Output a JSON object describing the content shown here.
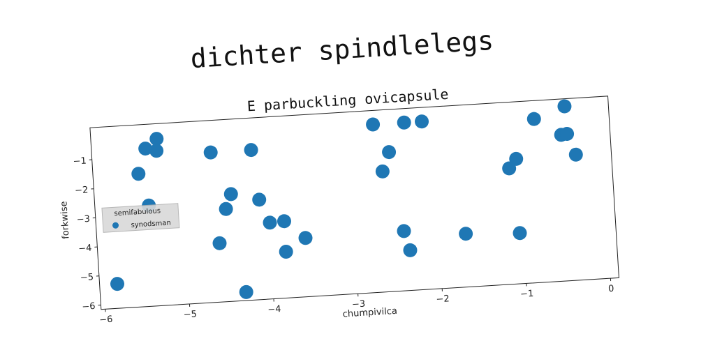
{
  "suptitle": "dichter spindlelegs",
  "chart_data": {
    "type": "scatter",
    "title": "E parbuckling ovicapsule",
    "xlabel": "chumpivilca",
    "ylabel": "forkwise",
    "xlim": [
      -6.05,
      0.1
    ],
    "ylim": [
      -6.15,
      0.1
    ],
    "xticks": [
      -6,
      -5,
      -4,
      -3,
      -2,
      -1,
      0
    ],
    "yticks": [
      -6,
      -5,
      -4,
      -3,
      -2,
      -1
    ],
    "xtick_labels": [
      "−6",
      "−5",
      "−4",
      "−3",
      "−2",
      "−1",
      "0"
    ],
    "ytick_labels": [
      "−6",
      "−5",
      "−4",
      "−3",
      "−2",
      "−1"
    ],
    "grid": false,
    "legend": {
      "title": "semifabulous",
      "position": "center-left"
    },
    "series": [
      {
        "name": "synodsman",
        "color": "#1f77b4",
        "points": [
          [
            -5.27,
            -0.42
          ],
          [
            -5.41,
            -0.73
          ],
          [
            -5.28,
            -0.83
          ],
          [
            -5.51,
            -1.58
          ],
          [
            -5.41,
            -2.69
          ],
          [
            -5.84,
            -5.31
          ],
          [
            -4.64,
            -1.0
          ],
          [
            -4.16,
            -1.0
          ],
          [
            -4.43,
            -2.47
          ],
          [
            -4.5,
            -2.97
          ],
          [
            -4.1,
            -2.72
          ],
          [
            -3.99,
            -3.53
          ],
          [
            -3.82,
            -3.51
          ],
          [
            -4.6,
            -4.13
          ],
          [
            -3.82,
            -4.56
          ],
          [
            -3.58,
            -4.13
          ],
          [
            -4.32,
            -5.86
          ],
          [
            -2.7,
            -0.38
          ],
          [
            -2.33,
            -0.38
          ],
          [
            -2.12,
            -0.38
          ],
          [
            -2.53,
            -1.36
          ],
          [
            -2.62,
            -2.01
          ],
          [
            -2.41,
            -4.1
          ],
          [
            -2.35,
            -4.77
          ],
          [
            -1.68,
            -4.32
          ],
          [
            -1.04,
            -4.41
          ],
          [
            -0.79,
            -0.53
          ],
          [
            -0.42,
            -0.16
          ],
          [
            -0.48,
            -1.13
          ],
          [
            -0.41,
            -1.11
          ],
          [
            -1.03,
            -1.86
          ],
          [
            -1.12,
            -2.17
          ],
          [
            -0.32,
            -1.84
          ]
        ]
      }
    ]
  }
}
